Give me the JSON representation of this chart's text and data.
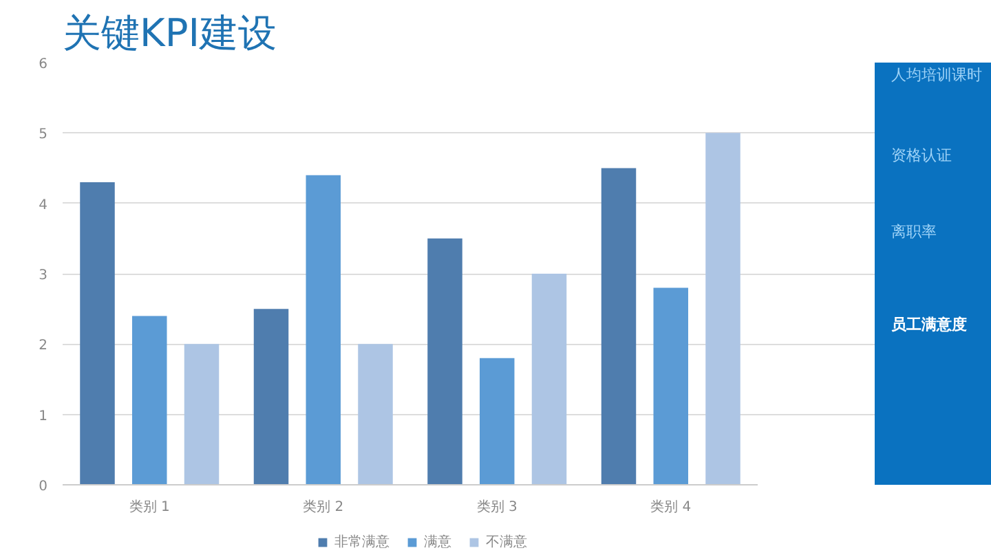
{
  "chart_data": {
    "type": "bar",
    "title": "关键KPI建设",
    "categories": [
      "类别 1",
      "类别 2",
      "类别 3",
      "类别 4"
    ],
    "series": [
      {
        "name": "非常满意",
        "color": "#4f7dae",
        "values": [
          4.3,
          2.5,
          3.5,
          4.5
        ]
      },
      {
        "name": "满意",
        "color": "#5b9bd5",
        "values": [
          2.4,
          4.4,
          1.8,
          2.8
        ]
      },
      {
        "name": "不满意",
        "color": "#adc5e4",
        "values": [
          2,
          2,
          3,
          5
        ]
      }
    ],
    "ylim": [
      0,
      6
    ],
    "yticks": [
      0,
      1,
      2,
      3,
      4,
      5,
      6
    ],
    "grid": "y",
    "legend": "bottom",
    "annotations": [
      "人均培训课时",
      "资格认证",
      "离职率",
      "员工满意度"
    ]
  }
}
